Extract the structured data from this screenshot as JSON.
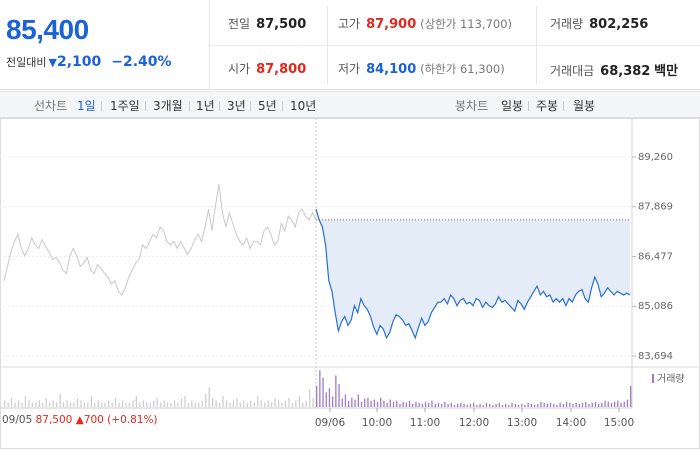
{
  "quote": {
    "price": "85,400",
    "change_label": "전일대비",
    "change_arrow": "▼",
    "change_value": "2,100",
    "change_pct": "−2.40%"
  },
  "stats": {
    "prev_close": {
      "label": "전일",
      "value": "87,500"
    },
    "high": {
      "label": "고가",
      "value": "87,900",
      "note": "(상한가 113,700)"
    },
    "volume": {
      "label": "거래량",
      "value": "802,256"
    },
    "open": {
      "label": "시가",
      "value": "87,800"
    },
    "low": {
      "label": "저가",
      "value": "84,100",
      "note": "(하한가 61,300)"
    },
    "amount": {
      "label": "거래대금",
      "value": "68,382",
      "unit": "백만"
    }
  },
  "tabs": {
    "line_label": "선차트",
    "line_options": [
      "1일",
      "1주일",
      "3개월",
      "1년",
      "3년",
      "5년",
      "10년"
    ],
    "line_active": "1일",
    "candle_label": "봉차트",
    "candle_options": [
      "일봉",
      "주봉",
      "월봉"
    ]
  },
  "colors": {
    "accent_blue": "#1a62d6",
    "up_red": "#e0281e",
    "prev_line": "#c8c8c8",
    "today_line": "#2a6fd6",
    "fill": "#e4ecf8",
    "volume": "#9d7bc6"
  },
  "chart_data": {
    "type": "line",
    "y_ticks": [
      "89,260",
      "87,869",
      "86,477",
      "85,086",
      "83,694"
    ],
    "y_tick_values": [
      89260,
      87869,
      86477,
      85086,
      83694
    ],
    "ylim": [
      83694,
      89260
    ],
    "x_ticks": [
      "09/05",
      "09/06",
      "10:00",
      "11:00",
      "12:00",
      "13:00",
      "14:00",
      "15:00"
    ],
    "legend_volume": "거래량",
    "prev_close_price": 87500,
    "prev_day": {
      "date": "09/05",
      "close": "87,500",
      "change_arrow": "▲",
      "change": "700",
      "change_pct": "(+0.81%)",
      "y": [
        85800,
        86200,
        86600,
        86900,
        87100,
        86700,
        86500,
        86700,
        87000,
        86800,
        86700,
        86950,
        86750,
        86600,
        86400,
        86450,
        86300,
        86100,
        86000,
        86500,
        86700,
        86500,
        86200,
        86300,
        86450,
        86100,
        86000,
        86250,
        86150,
        86000,
        85900,
        85700,
        85800,
        85500,
        85400,
        85600,
        85900,
        86100,
        86300,
        86400,
        86800,
        86700,
        86900,
        87100,
        87000,
        87300,
        87200,
        86900,
        86800,
        86900,
        86700,
        86900,
        86700,
        86550,
        86700,
        86950,
        87100,
        86900,
        87300,
        87800,
        87200,
        87900,
        88500,
        87700,
        87300,
        87700,
        87400,
        87100,
        86900,
        86800,
        87000,
        86700,
        86900,
        86900,
        86800,
        87200,
        87300,
        87100,
        86800,
        86900,
        87400,
        87200,
        87600,
        87500,
        87300,
        87700,
        87800,
        87600,
        87500,
        87700,
        87500
      ]
    },
    "today": {
      "date": "09/06",
      "y": [
        87800,
        87500,
        87300,
        86800,
        85800,
        85500,
        84900,
        84400,
        84650,
        84800,
        84550,
        84700,
        85100,
        84900,
        85300,
        85100,
        85000,
        84800,
        84500,
        84300,
        84550,
        84450,
        84200,
        84350,
        84650,
        84850,
        84800,
        84700,
        84550,
        84600,
        84400,
        84200,
        84500,
        84750,
        84550,
        84650,
        84900,
        85050,
        85200,
        85200,
        85300,
        85150,
        85400,
        85300,
        85100,
        85250,
        85300,
        85150,
        85200,
        85100,
        85300,
        85250,
        85050,
        85200,
        85100,
        85050,
        85150,
        85350,
        85200,
        85250,
        85150,
        85050,
        84950,
        85250,
        85150,
        85000,
        85200,
        85350,
        85500,
        85650,
        85400,
        85500,
        85350,
        85400,
        85200,
        85300,
        85200,
        85300,
        85100,
        85300,
        85200,
        85400,
        85500,
        85550,
        85300,
        85200,
        85600,
        85900,
        85700,
        85350,
        85450,
        85600,
        85500,
        85400,
        85500,
        85450,
        85400,
        85450,
        85400
      ]
    },
    "volume_prev": [
      3,
      2,
      4,
      2,
      3,
      2,
      5,
      3,
      2,
      2,
      3,
      2,
      4,
      2,
      3,
      2,
      6,
      2,
      3,
      2,
      2,
      4,
      3,
      2,
      2,
      5,
      2,
      3,
      2,
      2,
      3,
      2,
      4,
      2,
      3,
      2,
      2,
      3,
      5,
      2,
      3,
      2,
      2,
      3,
      4,
      2,
      3,
      2,
      2,
      3,
      2,
      4,
      5,
      2,
      3,
      2,
      2,
      3,
      6,
      9,
      4,
      3,
      2,
      5,
      3,
      2,
      3,
      4,
      2,
      3,
      2,
      3,
      2,
      5,
      3,
      2,
      3,
      2,
      4,
      3,
      2,
      3,
      4,
      2,
      3,
      5,
      2,
      3,
      8,
      4,
      6
    ],
    "volume_today": [
      20,
      35,
      28,
      14,
      18,
      10,
      30,
      22,
      8,
      12,
      6,
      9,
      7,
      12,
      5,
      8,
      9,
      6,
      7,
      5,
      9,
      6,
      4,
      7,
      5,
      6,
      3,
      5,
      4,
      6,
      3,
      5,
      4,
      3,
      5,
      4,
      6,
      3,
      4,
      3,
      5,
      3,
      4,
      2,
      3,
      4,
      3,
      2,
      3,
      4,
      2,
      3,
      2,
      4,
      3,
      2,
      3,
      4,
      2,
      3,
      2,
      4,
      3,
      2,
      3,
      2,
      4,
      3,
      2,
      3,
      5,
      4,
      3,
      4,
      3,
      2,
      4,
      3,
      5,
      4,
      3,
      4,
      3,
      4,
      5,
      3,
      4,
      5,
      3,
      4,
      6,
      5,
      4,
      5,
      6,
      4,
      5,
      7,
      20
    ]
  }
}
